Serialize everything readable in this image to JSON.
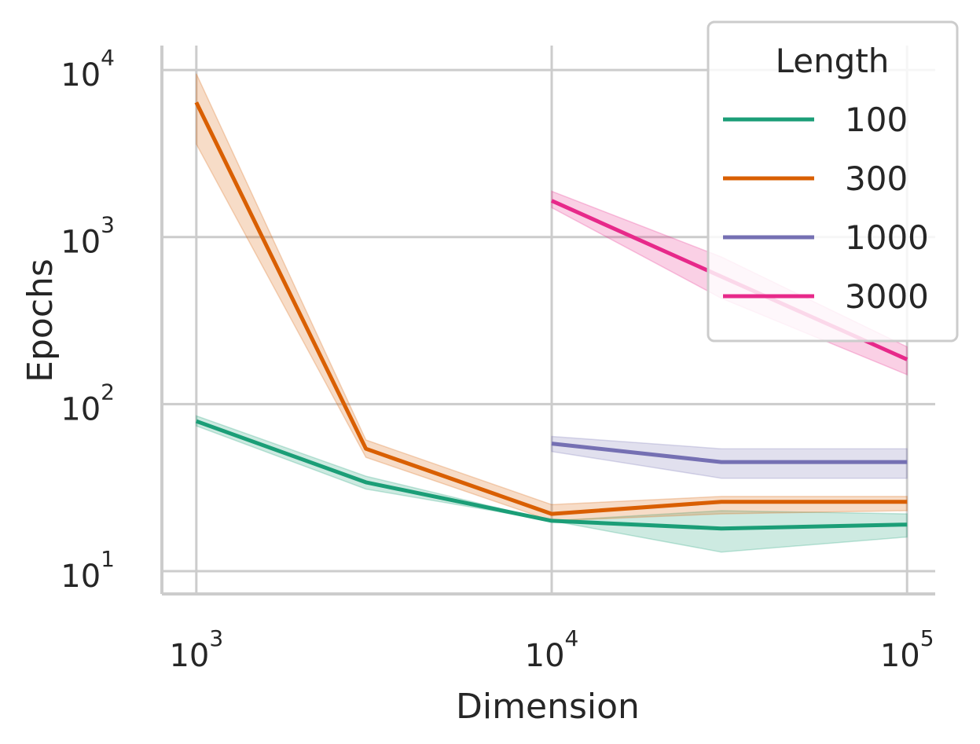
{
  "chart_data": {
    "type": "line",
    "xlabel": "Dimension",
    "ylabel": "Epochs",
    "x_scale": "log",
    "y_scale": "log",
    "xlim": [
      800,
      120000
    ],
    "ylim": [
      7.3,
      14000
    ],
    "x_ticks": [
      {
        "value": 1000,
        "base": "10",
        "exp": "3"
      },
      {
        "value": 10000,
        "base": "10",
        "exp": "4"
      },
      {
        "value": 100000,
        "base": "10",
        "exp": "5"
      }
    ],
    "y_ticks": [
      {
        "value": 10,
        "base": "10",
        "exp": "1"
      },
      {
        "value": 100,
        "base": "10",
        "exp": "2"
      },
      {
        "value": 1000,
        "base": "10",
        "exp": "3"
      },
      {
        "value": 10000,
        "base": "10",
        "exp": "4"
      }
    ],
    "grid": true,
    "legend": {
      "title": "Length",
      "placement": "top-right"
    },
    "series": [
      {
        "name": "100",
        "color": "#1b9e77",
        "x": [
          1000,
          3000,
          10000,
          30000,
          100000
        ],
        "y": [
          79,
          34,
          20,
          18,
          19
        ],
        "lower": [
          74,
          31,
          20,
          13,
          16
        ],
        "upper": [
          85,
          37,
          20,
          23,
          22
        ]
      },
      {
        "name": "300",
        "color": "#d95f02",
        "x": [
          1000,
          3000,
          10000,
          30000,
          100000
        ],
        "y": [
          6400,
          54,
          22,
          26,
          26
        ],
        "lower": [
          3600,
          48,
          20,
          22,
          23
        ],
        "upper": [
          9500,
          61,
          25,
          28,
          28
        ]
      },
      {
        "name": "1000",
        "color": "#7570b3",
        "x": [
          10000,
          30000,
          100000
        ],
        "y": [
          58,
          45,
          45
        ],
        "lower": [
          52,
          36,
          36
        ],
        "upper": [
          64,
          54,
          54
        ]
      },
      {
        "name": "3000",
        "color": "#e7298a",
        "x": [
          10000,
          30000,
          100000
        ],
        "y": [
          1650,
          580,
          185
        ],
        "lower": [
          1500,
          430,
          150
        ],
        "upper": [
          1880,
          760,
          220
        ]
      }
    ]
  }
}
